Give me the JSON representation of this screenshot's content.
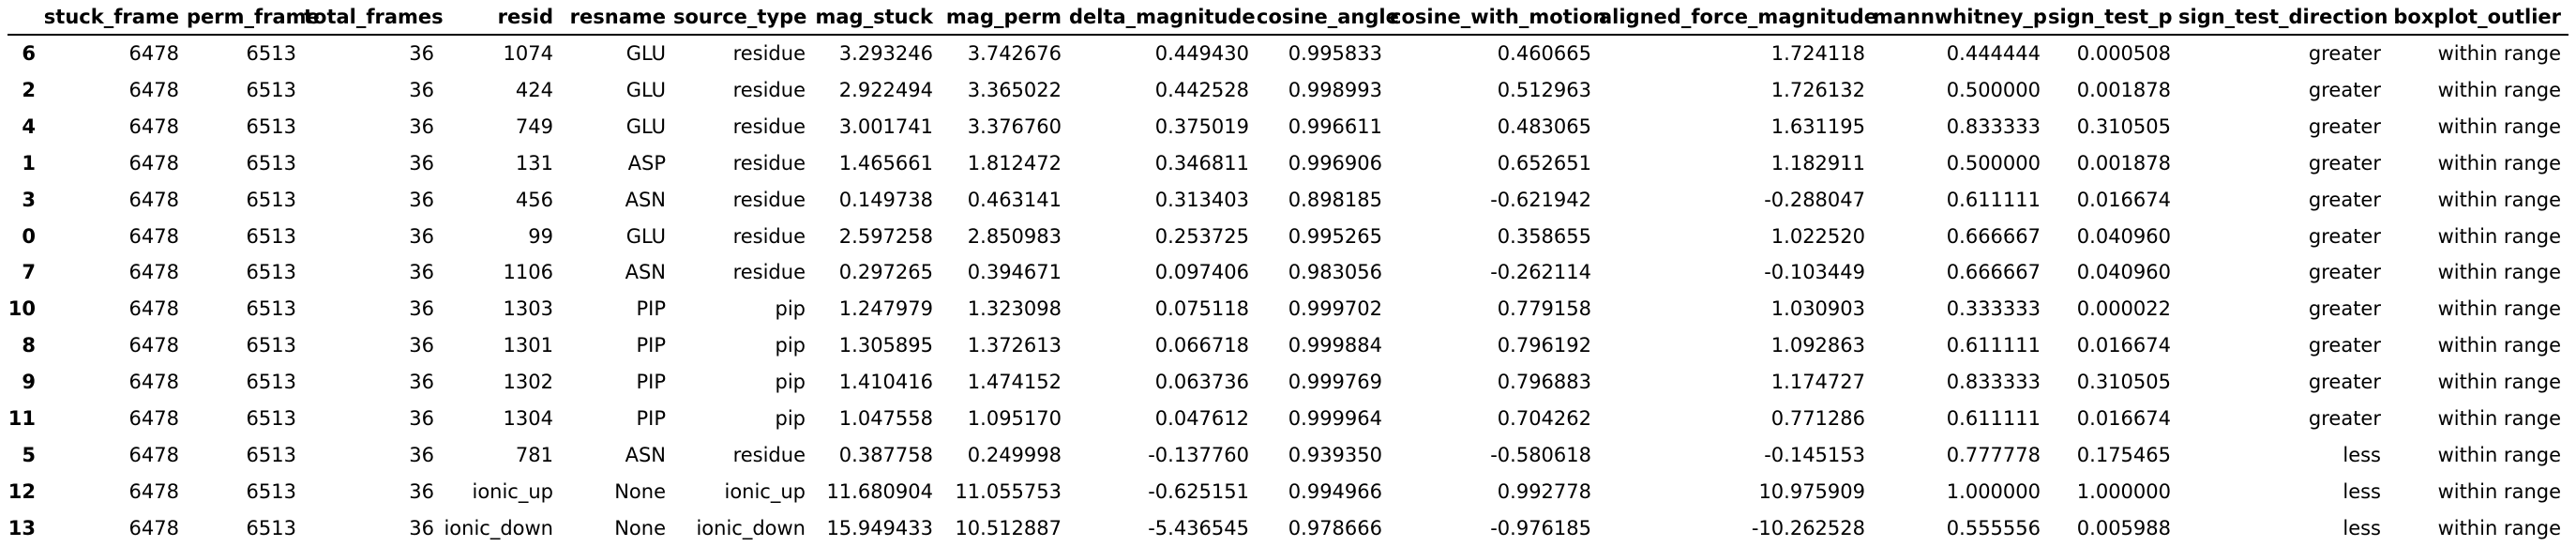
{
  "table": {
    "index_header": "",
    "columns": [
      "stuck_frame",
      "perm_frame",
      "total_frames",
      "resid",
      "resname",
      "source_type",
      "mag_stuck",
      "mag_perm",
      "delta_magnitude",
      "cosine_angle",
      "cosine_with_motion",
      "aligned_force_magnitude",
      "mannwhitney_p",
      "sign_test_p",
      "sign_test_direction",
      "boxplot_outlier"
    ],
    "rows": [
      {
        "index": "6",
        "cells": [
          "6478",
          "6513",
          "36",
          "1074",
          "GLU",
          "residue",
          "3.293246",
          "3.742676",
          "0.449430",
          "0.995833",
          "0.460665",
          "1.724118",
          "0.444444",
          "0.000508",
          "greater",
          "within range"
        ]
      },
      {
        "index": "2",
        "cells": [
          "6478",
          "6513",
          "36",
          "424",
          "GLU",
          "residue",
          "2.922494",
          "3.365022",
          "0.442528",
          "0.998993",
          "0.512963",
          "1.726132",
          "0.500000",
          "0.001878",
          "greater",
          "within range"
        ]
      },
      {
        "index": "4",
        "cells": [
          "6478",
          "6513",
          "36",
          "749",
          "GLU",
          "residue",
          "3.001741",
          "3.376760",
          "0.375019",
          "0.996611",
          "0.483065",
          "1.631195",
          "0.833333",
          "0.310505",
          "greater",
          "within range"
        ]
      },
      {
        "index": "1",
        "cells": [
          "6478",
          "6513",
          "36",
          "131",
          "ASP",
          "residue",
          "1.465661",
          "1.812472",
          "0.346811",
          "0.996906",
          "0.652651",
          "1.182911",
          "0.500000",
          "0.001878",
          "greater",
          "within range"
        ]
      },
      {
        "index": "3",
        "cells": [
          "6478",
          "6513",
          "36",
          "456",
          "ASN",
          "residue",
          "0.149738",
          "0.463141",
          "0.313403",
          "0.898185",
          "-0.621942",
          "-0.288047",
          "0.611111",
          "0.016674",
          "greater",
          "within range"
        ]
      },
      {
        "index": "0",
        "cells": [
          "6478",
          "6513",
          "36",
          "99",
          "GLU",
          "residue",
          "2.597258",
          "2.850983",
          "0.253725",
          "0.995265",
          "0.358655",
          "1.022520",
          "0.666667",
          "0.040960",
          "greater",
          "within range"
        ]
      },
      {
        "index": "7",
        "cells": [
          "6478",
          "6513",
          "36",
          "1106",
          "ASN",
          "residue",
          "0.297265",
          "0.394671",
          "0.097406",
          "0.983056",
          "-0.262114",
          "-0.103449",
          "0.666667",
          "0.040960",
          "greater",
          "within range"
        ]
      },
      {
        "index": "10",
        "cells": [
          "6478",
          "6513",
          "36",
          "1303",
          "PIP",
          "pip",
          "1.247979",
          "1.323098",
          "0.075118",
          "0.999702",
          "0.779158",
          "1.030903",
          "0.333333",
          "0.000022",
          "greater",
          "within range"
        ]
      },
      {
        "index": "8",
        "cells": [
          "6478",
          "6513",
          "36",
          "1301",
          "PIP",
          "pip",
          "1.305895",
          "1.372613",
          "0.066718",
          "0.999884",
          "0.796192",
          "1.092863",
          "0.611111",
          "0.016674",
          "greater",
          "within range"
        ]
      },
      {
        "index": "9",
        "cells": [
          "6478",
          "6513",
          "36",
          "1302",
          "PIP",
          "pip",
          "1.410416",
          "1.474152",
          "0.063736",
          "0.999769",
          "0.796883",
          "1.174727",
          "0.833333",
          "0.310505",
          "greater",
          "within range"
        ]
      },
      {
        "index": "11",
        "cells": [
          "6478",
          "6513",
          "36",
          "1304",
          "PIP",
          "pip",
          "1.047558",
          "1.095170",
          "0.047612",
          "0.999964",
          "0.704262",
          "0.771286",
          "0.611111",
          "0.016674",
          "greater",
          "within range"
        ]
      },
      {
        "index": "5",
        "cells": [
          "6478",
          "6513",
          "36",
          "781",
          "ASN",
          "residue",
          "0.387758",
          "0.249998",
          "-0.137760",
          "0.939350",
          "-0.580618",
          "-0.145153",
          "0.777778",
          "0.175465",
          "less",
          "within range"
        ]
      },
      {
        "index": "12",
        "cells": [
          "6478",
          "6513",
          "36",
          "ionic_up",
          "None",
          "ionic_up",
          "11.680904",
          "11.055753",
          "-0.625151",
          "0.994966",
          "0.992778",
          "10.975909",
          "1.000000",
          "1.000000",
          "less",
          "within range"
        ]
      },
      {
        "index": "13",
        "cells": [
          "6478",
          "6513",
          "36",
          "ionic_down",
          "None",
          "ionic_down",
          "15.949433",
          "10.512887",
          "-5.436545",
          "0.978666",
          "-0.976185",
          "-10.262528",
          "0.555556",
          "0.005988",
          "less",
          "within range"
        ]
      }
    ]
  }
}
